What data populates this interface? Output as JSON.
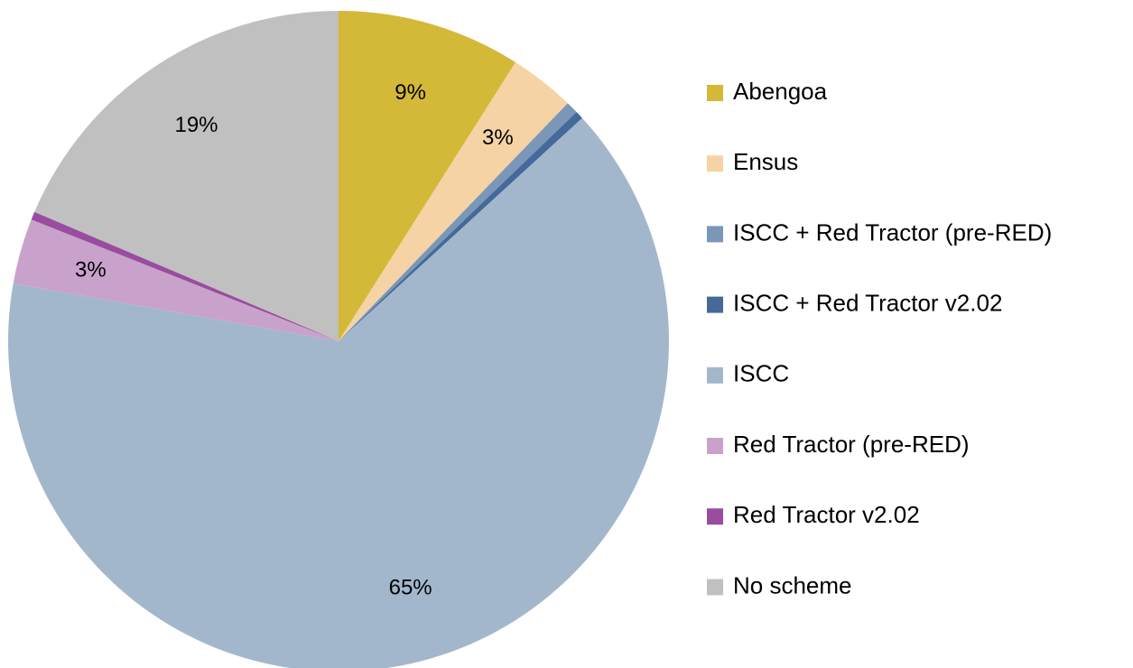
{
  "chart_data": {
    "type": "pie",
    "categories": [
      "Abengoa",
      "Ensus",
      "ISCC + Red Tractor (pre-RED)",
      "ISCC + Red Tractor v2.02",
      "ISCC",
      "Red Tractor (pre-RED)",
      "Red Tractor v2.02",
      "No scheme"
    ],
    "values": [
      9.0,
      3.2,
      0.6,
      0.4,
      64.6,
      3.2,
      0.4,
      18.6
    ],
    "value_labels": [
      "9%",
      "3%",
      null,
      null,
      "65%",
      "3%",
      null,
      "19%"
    ],
    "colors": [
      "#d4b838",
      "#f5d3a5",
      "#7a97b8",
      "#44699a",
      "#a3b7cc",
      "#c9a2cc",
      "#9a4c9e",
      "#c0c0c0"
    ],
    "legend": "right"
  }
}
